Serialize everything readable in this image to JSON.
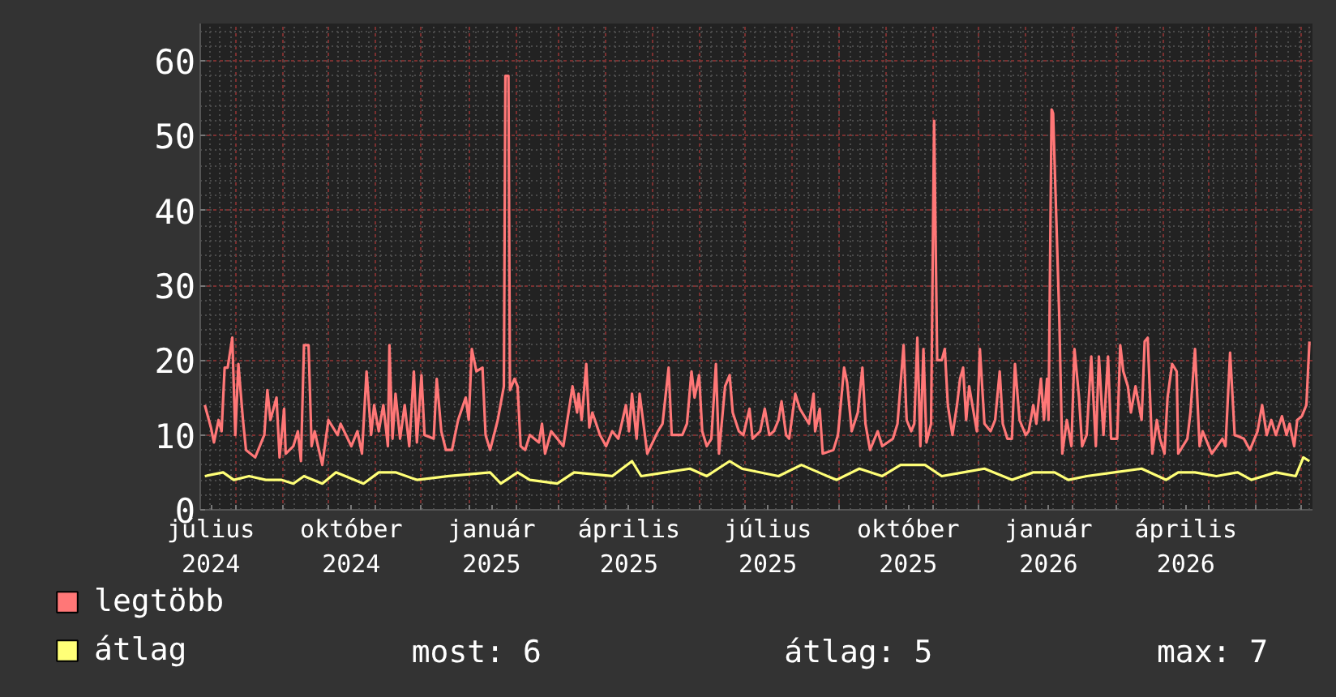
{
  "chart_data": {
    "type": "line",
    "xlim": [
      "2024-07-09",
      "2026-07-08"
    ],
    "ylim": [
      0,
      65
    ],
    "yticks": [
      0,
      10,
      20,
      30,
      40,
      50,
      60
    ],
    "xticks": [
      {
        "value": "2024-07-16",
        "label": "július 2024"
      },
      {
        "value": "2024-08-01",
        "label": null
      },
      {
        "value": "2024-09-01",
        "label": null
      },
      {
        "value": "2024-10-01",
        "label": null
      },
      {
        "value": "2024-10-16",
        "label": "október 2024"
      },
      {
        "value": "2024-11-01",
        "label": null
      },
      {
        "value": "2024-12-01",
        "label": null
      },
      {
        "value": "2025-01-01",
        "label": null
      },
      {
        "value": "2025-01-16",
        "label": "január 2025"
      },
      {
        "value": "2025-02-01",
        "label": null
      },
      {
        "value": "2025-03-01",
        "label": null
      },
      {
        "value": "2025-04-01",
        "label": null
      },
      {
        "value": "2025-04-16",
        "label": "április 2025"
      },
      {
        "value": "2025-05-01",
        "label": null
      },
      {
        "value": "2025-06-01",
        "label": null
      },
      {
        "value": "2025-07-01",
        "label": null
      },
      {
        "value": "2025-07-16",
        "label": "július 2025"
      },
      {
        "value": "2025-08-01",
        "label": null
      },
      {
        "value": "2025-09-01",
        "label": null
      },
      {
        "value": "2025-10-01",
        "label": null
      },
      {
        "value": "2025-10-16",
        "label": "október 2025"
      },
      {
        "value": "2025-11-01",
        "label": null
      },
      {
        "value": "2025-12-01",
        "label": null
      },
      {
        "value": "2026-01-01",
        "label": null
      },
      {
        "value": "2026-01-16",
        "label": "január 2026"
      },
      {
        "value": "2026-02-01",
        "label": null
      },
      {
        "value": "2026-03-01",
        "label": null
      },
      {
        "value": "2026-04-01",
        "label": null
      },
      {
        "value": "2026-04-16",
        "label": "április 2026"
      },
      {
        "value": "2026-05-01",
        "label": null
      },
      {
        "value": "2026-06-01",
        "label": null
      },
      {
        "value": "2026-07-01",
        "label": null
      }
    ],
    "grid": true,
    "legend": "bottom",
    "annotations": [
      "most: 6",
      "átlag: 5",
      "max: 7"
    ],
    "series": [
      {
        "name": "legtöbb",
        "color": "#ff7777",
        "x": [
          "2024-07-12",
          "2024-07-16",
          "2024-07-18",
          "2024-07-21",
          "2024-07-23",
          "2024-07-25",
          "2024-07-27",
          "2024-07-30",
          "2024-08-01",
          "2024-08-03",
          "2024-08-06",
          "2024-08-08",
          "2024-08-14",
          "2024-08-20",
          "2024-08-22",
          "2024-08-24",
          "2024-08-28",
          "2024-08-30",
          "2024-09-02",
          "2024-09-03",
          "2024-09-08",
          "2024-09-11",
          "2024-09-13",
          "2024-09-15",
          "2024-09-18",
          "2024-09-20",
          "2024-09-22",
          "2024-09-27",
          "2024-10-01",
          "2024-10-07",
          "2024-10-09",
          "2024-10-16",
          "2024-10-20",
          "2024-10-23",
          "2024-10-26",
          "2024-10-29",
          "2024-10-31",
          "2024-11-03",
          "2024-11-06",
          "2024-11-09",
          "2024-11-10",
          "2024-11-12",
          "2024-11-14",
          "2024-11-17",
          "2024-11-20",
          "2024-11-23",
          "2024-11-26",
          "2024-11-28",
          "2024-12-01",
          "2024-12-03",
          "2024-12-09",
          "2024-12-11",
          "2024-12-14",
          "2024-12-17",
          "2024-12-21",
          "2024-12-25",
          "2024-12-30",
          "2025-01-01",
          "2025-01-03",
          "2025-01-06",
          "2025-01-10",
          "2025-01-12",
          "2025-01-15",
          "2025-01-20",
          "2025-01-24",
          "2025-01-25",
          "2025-01-27",
          "2025-01-28",
          "2025-01-31",
          "2025-02-02",
          "2025-02-04",
          "2025-02-07",
          "2025-02-10",
          "2025-02-16",
          "2025-02-18",
          "2025-02-20",
          "2025-02-24",
          "2025-03-04",
          "2025-03-07",
          "2025-03-10",
          "2025-03-13",
          "2025-03-14",
          "2025-03-16",
          "2025-03-19",
          "2025-03-21",
          "2025-03-23",
          "2025-03-28",
          "2025-04-01",
          "2025-04-05",
          "2025-04-09",
          "2025-04-14",
          "2025-04-16",
          "2025-04-18",
          "2025-04-21",
          "2025-04-23",
          "2025-04-28",
          "2025-05-05",
          "2025-05-08",
          "2025-05-12",
          "2025-05-14",
          "2025-05-21",
          "2025-05-24",
          "2025-05-27",
          "2025-05-29",
          "2025-06-01",
          "2025-06-03",
          "2025-06-06",
          "2025-06-09",
          "2025-06-12",
          "2025-06-14",
          "2025-06-18",
          "2025-06-21",
          "2025-06-23",
          "2025-06-27",
          "2025-06-30",
          "2025-07-04",
          "2025-07-06",
          "2025-07-11",
          "2025-07-14",
          "2025-07-17",
          "2025-07-20",
          "2025-07-23",
          "2025-07-25",
          "2025-07-28",
          "2025-07-30",
          "2025-08-03",
          "2025-08-06",
          "2025-08-12",
          "2025-08-15",
          "2025-08-16",
          "2025-08-19",
          "2025-08-21",
          "2025-08-28",
          "2025-08-31",
          "2025-09-04",
          "2025-09-06",
          "2025-09-09",
          "2025-09-13",
          "2025-09-16",
          "2025-09-18",
          "2025-09-21",
          "2025-09-26",
          "2025-09-29",
          "2025-10-06",
          "2025-10-09",
          "2025-10-13",
          "2025-10-15",
          "2025-10-18",
          "2025-10-20",
          "2025-10-22",
          "2025-10-24",
          "2025-10-26",
          "2025-10-28",
          "2025-10-31",
          "2025-11-02",
          "2025-11-04",
          "2025-11-07",
          "2025-11-09",
          "2025-11-11",
          "2025-11-14",
          "2025-11-17",
          "2025-11-19",
          "2025-11-21",
          "2025-11-23",
          "2025-11-25",
          "2025-11-30",
          "2025-12-02",
          "2025-12-05",
          "2025-12-09",
          "2025-12-12",
          "2025-12-15",
          "2025-12-17",
          "2025-12-20",
          "2025-12-23",
          "2025-12-25",
          "2025-12-28",
          "2026-01-01",
          "2026-01-03",
          "2026-01-06",
          "2026-01-08",
          "2026-01-11",
          "2026-01-13",
          "2026-01-15",
          "2026-01-16",
          "2026-01-18",
          "2026-01-19",
          "2026-01-21",
          "2026-01-23",
          "2026-01-25",
          "2026-01-28",
          "2026-01-31",
          "2026-02-02",
          "2026-02-05",
          "2026-02-07",
          "2026-02-10",
          "2026-02-13",
          "2026-02-16",
          "2026-02-18",
          "2026-02-21",
          "2026-02-24",
          "2026-02-26",
          "2026-03-02",
          "2026-03-04",
          "2026-03-06",
          "2026-03-09",
          "2026-03-11",
          "2026-03-14",
          "2026-03-18",
          "2026-03-20",
          "2026-03-22",
          "2026-03-25",
          "2026-03-28",
          "2026-03-30",
          "2026-04-02",
          "2026-04-04",
          "2026-04-07",
          "2026-04-10",
          "2026-04-11",
          "2026-04-17",
          "2026-04-19",
          "2026-04-22",
          "2026-04-25",
          "2026-04-27",
          "2026-05-03",
          "2026-05-10",
          "2026-05-12",
          "2026-05-15",
          "2026-05-18",
          "2026-05-24",
          "2026-05-28",
          "2026-06-02",
          "2026-06-05",
          "2026-06-08",
          "2026-06-11",
          "2026-06-14",
          "2026-06-18",
          "2026-06-21",
          "2026-06-23",
          "2026-06-26",
          "2026-06-28",
          "2026-07-01",
          "2026-07-04",
          "2026-07-06"
        ],
        "values": [
          14,
          11,
          9,
          12,
          10.5,
          19,
          19,
          23,
          10,
          19.5,
          12,
          8,
          7,
          10,
          16,
          12,
          15,
          7,
          13.5,
          7.5,
          8.5,
          10.5,
          6.5,
          22,
          22,
          8.5,
          10.5,
          6,
          12,
          10,
          11.5,
          8.5,
          10.5,
          7.5,
          18.5,
          10,
          14,
          10.5,
          14,
          8.5,
          22,
          9.5,
          15.5,
          9.5,
          14,
          8.5,
          18.5,
          9,
          18,
          10,
          9.5,
          17.5,
          10.5,
          8,
          8,
          12,
          15,
          12,
          21.5,
          18.5,
          19,
          10,
          8,
          12,
          16.5,
          58,
          58,
          16,
          17.5,
          16.5,
          8.5,
          8,
          10,
          9,
          11.5,
          7.5,
          10.5,
          8.5,
          12.5,
          16.5,
          13,
          15.5,
          12,
          19.5,
          11,
          13,
          10,
          8.5,
          10.5,
          9.5,
          14,
          10.5,
          15.5,
          9.5,
          15.5,
          7.5,
          10.5,
          11.5,
          19,
          10,
          10,
          11.5,
          18.5,
          15,
          18,
          10.5,
          8.5,
          9.5,
          19.5,
          7.5,
          16.5,
          18,
          13,
          10.5,
          10,
          13.5,
          9.5,
          10.5,
          13.5,
          10,
          10.5,
          12,
          14.5,
          10,
          9.5,
          15.5,
          13.5,
          11.5,
          15.5,
          10.5,
          13.5,
          7.5,
          8,
          10,
          19,
          17,
          10.5,
          13,
          19,
          11.5,
          8,
          10.5,
          8.5,
          9.5,
          11.5,
          22,
          12,
          10.5,
          11.5,
          23,
          8.5,
          21.5,
          9,
          11.5,
          52,
          20,
          20,
          21.5,
          14,
          10,
          14,
          17.5,
          19,
          12,
          16.5,
          10.5,
          21.5,
          11.5,
          10.5,
          12,
          18.5,
          11.5,
          9.5,
          9.5,
          19.5,
          12,
          10,
          10.5,
          14,
          11.5,
          17.5,
          12,
          17.5,
          12,
          53.5,
          53,
          39.5,
          26,
          7.5,
          12,
          8.5,
          21.5,
          15,
          8.5,
          10,
          20.5,
          8.5,
          20.5,
          10,
          20.5,
          9.5,
          9.5,
          22,
          18.5,
          16.5,
          13,
          16.5,
          12,
          22.5,
          23,
          7.5,
          12,
          9.5,
          7.5,
          15,
          19.5,
          18.5,
          7.5,
          9.5,
          13,
          21.5,
          8.5,
          10.5,
          7.5,
          9.5,
          8.5,
          21,
          10,
          9.5,
          8,
          10.5,
          14,
          10,
          12,
          10,
          12.5,
          10,
          11.5,
          8.5,
          12,
          12.5,
          14,
          22.5
        ]
      },
      {
        "name": "átlag",
        "color": "#ffff77",
        "x": [
          "2024-07-12",
          "2024-07-24",
          "2024-07-31",
          "2024-08-10",
          "2024-08-21",
          "2024-08-31",
          "2024-09-08",
          "2024-09-15",
          "2024-09-27",
          "2024-10-06",
          "2024-10-24",
          "2024-11-03",
          "2024-11-14",
          "2024-11-28",
          "2024-12-19",
          "2025-01-15",
          "2025-01-22",
          "2025-02-02",
          "2025-02-10",
          "2025-02-28",
          "2025-03-11",
          "2025-04-05",
          "2025-04-18",
          "2025-04-24",
          "2025-05-10",
          "2025-05-26",
          "2025-06-06",
          "2025-06-21",
          "2025-06-29",
          "2025-07-23",
          "2025-08-07",
          "2025-08-24",
          "2025-08-30",
          "2025-09-14",
          "2025-09-29",
          "2025-10-11",
          "2025-10-27",
          "2025-11-07",
          "2025-11-21",
          "2025-12-05",
          "2025-12-23",
          "2026-01-06",
          "2026-01-20",
          "2026-01-29",
          "2026-02-10",
          "2026-02-28",
          "2026-03-18",
          "2026-04-03",
          "2026-04-11",
          "2026-04-22",
          "2026-05-06",
          "2026-05-20",
          "2026-05-29",
          "2026-06-14",
          "2026-06-27",
          "2026-07-02",
          "2026-07-06"
        ],
        "values": [
          4.5,
          5,
          4,
          4.5,
          4,
          4,
          3.5,
          4.5,
          3.5,
          5,
          3.5,
          5,
          5,
          4,
          4.5,
          5,
          3.5,
          5,
          4,
          3.5,
          5,
          4.5,
          6.5,
          4.5,
          5,
          5.5,
          4.5,
          6.5,
          5.5,
          4.5,
          6,
          4.5,
          4,
          5.5,
          4.5,
          6,
          6,
          4.5,
          5,
          5.5,
          4,
          5,
          5,
          4,
          4.5,
          5,
          5.5,
          4,
          5,
          5,
          4.5,
          5,
          4,
          5,
          4.5,
          7,
          6.5
        ]
      }
    ]
  }
}
